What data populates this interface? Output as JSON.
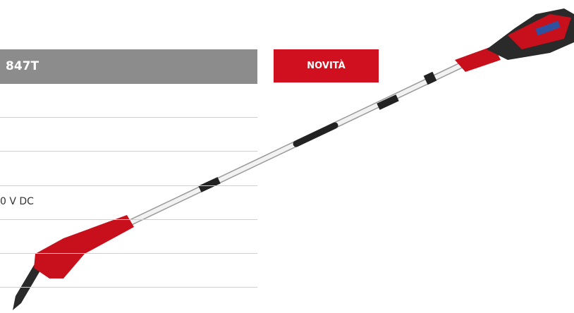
{
  "header": {
    "title": "847T"
  },
  "badge": "NOVITÀ",
  "table": {
    "rows": [
      [
        "0 V DC"
      ]
    ]
  }
}
